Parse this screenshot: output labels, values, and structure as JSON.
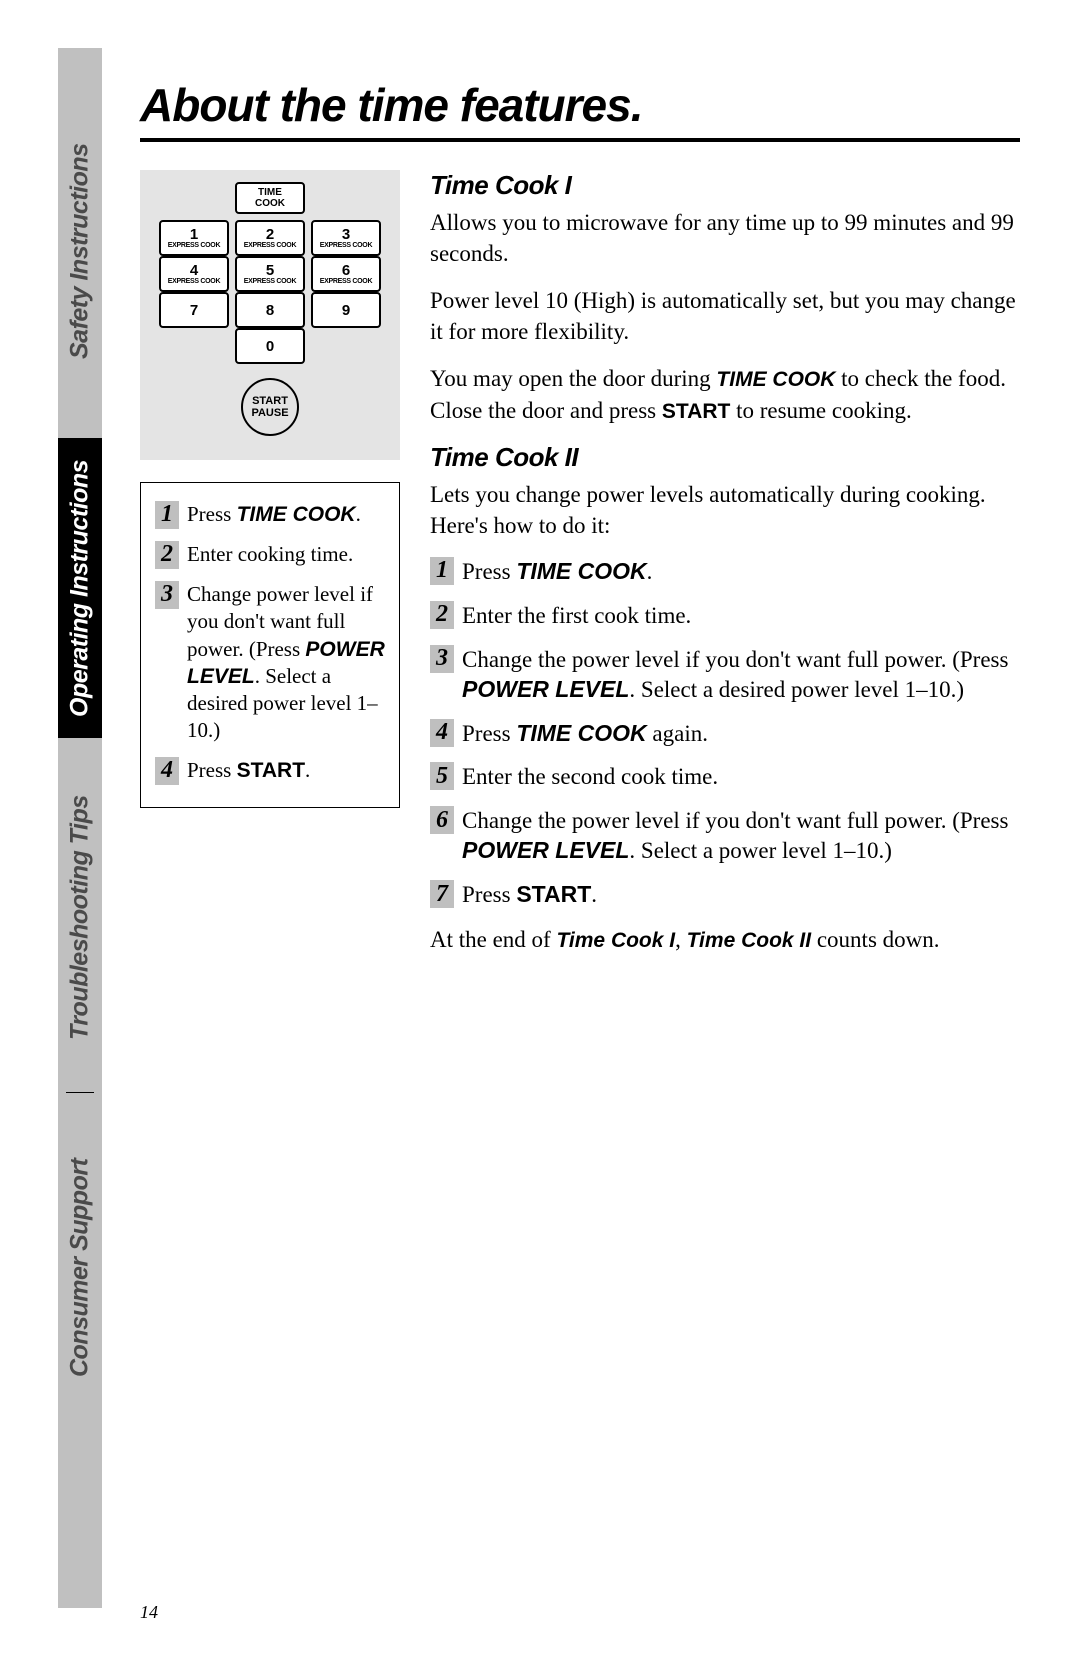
{
  "page_number": "14",
  "title": "About the time features.",
  "tabs": {
    "safety": "Safety Instructions",
    "operating": "Operating Instructions",
    "troubleshooting": "Troubleshooting Tips",
    "consumer": "Consumer Support"
  },
  "keypad": {
    "time_cook": "TIME\nCOOK",
    "rows": [
      [
        {
          "n": "1",
          "s": "EXPRESS COOK"
        },
        {
          "n": "2",
          "s": "EXPRESS COOK"
        },
        {
          "n": "3",
          "s": "EXPRESS COOK"
        }
      ],
      [
        {
          "n": "4",
          "s": "EXPRESS COOK"
        },
        {
          "n": "5",
          "s": "EXPRESS COOK"
        },
        {
          "n": "6",
          "s": "EXPRESS COOK"
        }
      ],
      [
        {
          "n": "7",
          "s": ""
        },
        {
          "n": "8",
          "s": ""
        },
        {
          "n": "9",
          "s": ""
        }
      ],
      [
        {
          "n": "0",
          "s": ""
        }
      ]
    ],
    "start_line1": "START",
    "start_line2": "PAUSE"
  },
  "left_steps": [
    {
      "n": "1",
      "html": "Press <span class='b'>TIME COOK</span>."
    },
    {
      "n": "2",
      "html": "Enter cooking time."
    },
    {
      "n": "3",
      "html": "Change power level if you don't want full power. (Press <span class='b'>POWER LEVEL</span>. Select a desired power level 1–10.)"
    },
    {
      "n": "4",
      "html": "Press <span class='bn'>START</span>."
    }
  ],
  "tc1_heading": "Time Cook I",
  "tc1_p1": "Allows you to microwave for any time up to 99 minutes and 99 seconds.",
  "tc1_p2": "Power level 10 (High) is automatically set, but you may change it for more flexibility.",
  "tc1_p3_html": "You may open the door during <span class='b'>TIME COOK</span> to check the food. Close the door and press <span class='bn'>START</span> to resume cooking.",
  "tc2_heading": "Time Cook II",
  "tc2_p1": "Lets you change power levels automatically during cooking. Here's how to do it:",
  "right_steps": [
    {
      "n": "1",
      "html": "Press <span class='b'>TIME COOK</span>."
    },
    {
      "n": "2",
      "html": "Enter the first cook time."
    },
    {
      "n": "3",
      "html": "Change the power level if you don't want full power. (Press <span class='b'>POWER LEVEL</span>. Select a desired power level 1–10.)"
    },
    {
      "n": "4",
      "html": "Press <span class='b'>TIME COOK</span> again."
    },
    {
      "n": "5",
      "html": "Enter the second cook time."
    },
    {
      "n": "6",
      "html": "Change the power level if you don't want full power. (Press <span class='b'>POWER LEVEL</span>. Select a power level 1–10.)"
    },
    {
      "n": "7",
      "html": "Press <span class='bn'>START</span>."
    }
  ],
  "closing_html": "At the end of <span class='b'>Time Cook I</span>, <span class='b'>Time Cook II</span> counts down."
}
